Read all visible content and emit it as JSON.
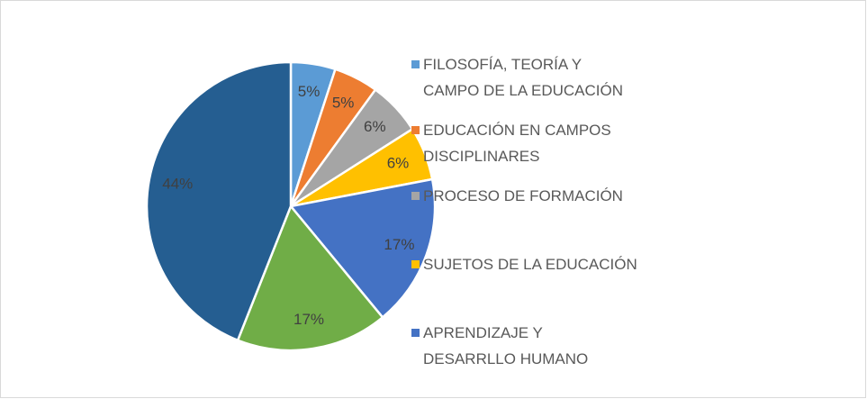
{
  "chart_data": {
    "type": "pie",
    "categories": [
      "FILOSOFÍA, TEORÍA Y CAMPO DE LA EDUCACIÓN",
      "EDUCACIÓN EN CAMPOS DISCIPLINARES",
      "PROCESO DE FORMACIÓN",
      "SUJETOS DE LA EDUCACIÓN",
      "APRENDIZAJE Y DESARRLLO HUMANO",
      null,
      null
    ],
    "values": [
      5,
      5,
      6,
      6,
      17,
      17,
      44
    ],
    "value_labels": [
      "5%",
      "5%",
      "6%",
      "6%",
      "17%",
      "17%",
      "44%"
    ],
    "colors": [
      "#5b9bd5",
      "#ed7d31",
      "#a5a5a5",
      "#ffc000",
      "#4472c4",
      "#70ad47",
      "#255e91"
    ]
  }
}
